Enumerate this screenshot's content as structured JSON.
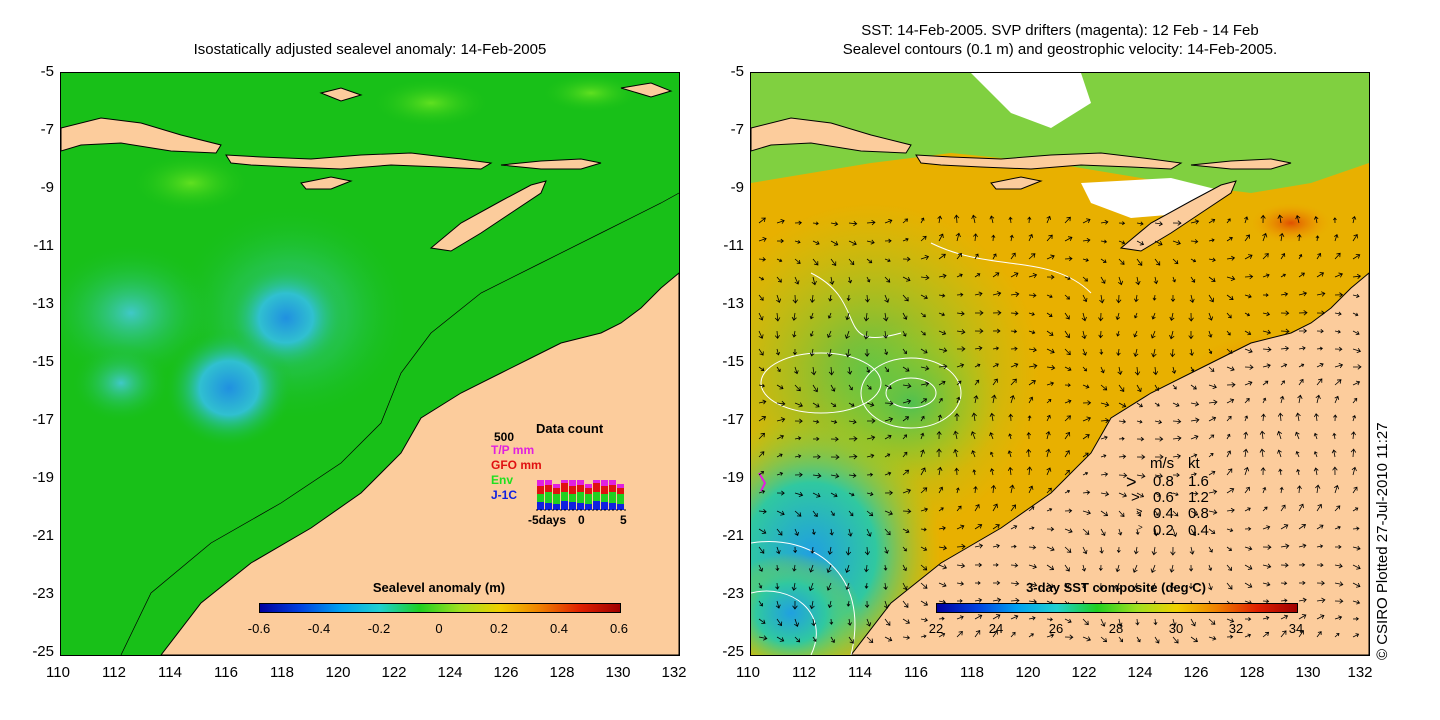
{
  "left_panel": {
    "title": "Isostatically adjusted sealevel anomaly: 14-Feb-2005",
    "y_ticks": [
      "-5",
      "-7",
      "-9",
      "-11",
      "-13",
      "-15",
      "-17",
      "-19",
      "-21",
      "-23",
      "-25"
    ],
    "x_ticks": [
      "110",
      "112",
      "114",
      "116",
      "118",
      "120",
      "122",
      "124",
      "126",
      "128",
      "130",
      "132"
    ],
    "colorbar": {
      "label": "Sealevel anomaly (m)",
      "ticks": [
        "-0.6",
        "-0.4",
        "-0.2",
        "0",
        "0.2",
        "0.4",
        "0.6"
      ]
    },
    "inset": {
      "title": "Data count",
      "max_label": "500",
      "legend": [
        {
          "label": "T/P mm",
          "color": "#e020e0"
        },
        {
          "label": "GFO mm",
          "color": "#e01010"
        },
        {
          "label": "Env",
          "color": "#20d020"
        },
        {
          "label": "J-1C",
          "color": "#1020e0"
        }
      ],
      "x_labels": [
        "-5days",
        "0",
        "5"
      ]
    }
  },
  "right_panel": {
    "title_line1": "SST: 14-Feb-2005. SVP drifters (magenta): 12 Feb - 14 Feb",
    "title_line2": "Sealevel contours (0.1 m) and geostrophic velocity: 14-Feb-2005.",
    "y_ticks": [
      "-5",
      "-7",
      "-9",
      "-11",
      "-13",
      "-15",
      "-17",
      "-19",
      "-21",
      "-23",
      "-25"
    ],
    "x_ticks": [
      "110",
      "112",
      "114",
      "116",
      "118",
      "120",
      "122",
      "124",
      "126",
      "128",
      "130",
      "132"
    ],
    "colorbar": {
      "label": "3-day SST composite (deg C)",
      "ticks": [
        "22",
        "24",
        "26",
        "28",
        "30",
        "32",
        "34"
      ]
    },
    "velocity_legend": {
      "header_ms": "m/s",
      "header_kt": "kt",
      "rows": [
        {
          "ms": "0.8",
          "kt": "1.6"
        },
        {
          "ms": "0.6",
          "kt": "1.2"
        },
        {
          "ms": "0.4",
          "kt": "0.8"
        },
        {
          "ms": "0.2",
          "kt": "0.4"
        }
      ]
    }
  },
  "credit": "© CSIRO Plotted 27-Jul-2010 11:27",
  "colors": {
    "land": "#fccc9c",
    "ocean_green": "#18c018",
    "sst_orange": "#f0a000"
  }
}
